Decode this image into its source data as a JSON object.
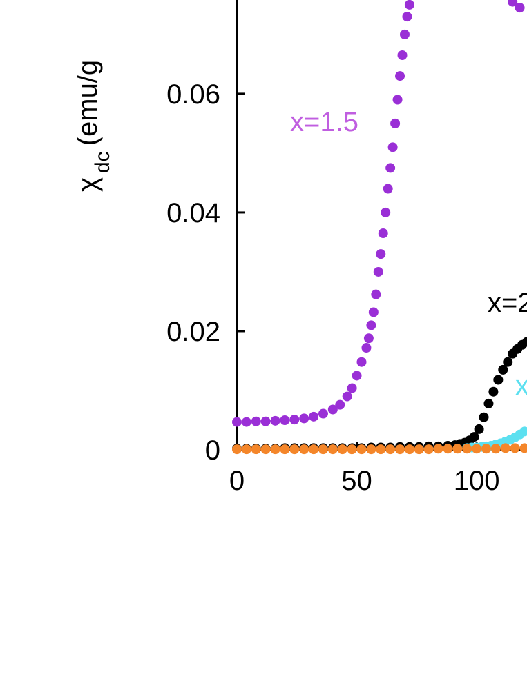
{
  "chart_data": {
    "type": "scatter",
    "y_label": "χ",
    "y_label_subscript": "dc",
    "y_label_unit": "(emu/g",
    "xlim": [
      0,
      121
    ],
    "ylim": [
      0,
      0.0758
    ],
    "xticks": [
      0,
      50,
      100
    ],
    "yticks": [
      0,
      0.02,
      0.04,
      0.06
    ],
    "series": [
      {
        "name": "x=1.5",
        "color": "#9a2fd6",
        "label_color": "#c05ee0",
        "x": [
          0,
          4,
          8,
          12,
          16,
          20,
          24,
          28,
          32,
          36,
          40,
          43,
          46,
          48,
          50,
          52,
          54,
          55,
          56,
          57,
          58,
          59,
          60,
          61,
          62,
          63,
          64,
          65,
          66,
          67,
          68,
          69,
          70,
          71,
          72,
          115,
          118
        ],
        "values": [
          0.0047,
          0.0047,
          0.0048,
          0.0048,
          0.0049,
          0.005,
          0.0051,
          0.0053,
          0.0056,
          0.0061,
          0.0068,
          0.0076,
          0.009,
          0.0104,
          0.0125,
          0.0148,
          0.0172,
          0.0188,
          0.021,
          0.0232,
          0.0262,
          0.03,
          0.033,
          0.0365,
          0.04,
          0.044,
          0.0475,
          0.051,
          0.055,
          0.059,
          0.063,
          0.0665,
          0.07,
          0.073,
          0.075,
          0.0755,
          0.0745
        ]
      },
      {
        "name": "x=2",
        "color": "#000000",
        "label_color": "#000000",
        "x": [
          0,
          4,
          8,
          12,
          16,
          20,
          24,
          28,
          32,
          36,
          40,
          44,
          48,
          52,
          56,
          60,
          64,
          68,
          72,
          76,
          80,
          84,
          88,
          91,
          93,
          95,
          97,
          99,
          101,
          103,
          105,
          107,
          109,
          111,
          113,
          115,
          117,
          119,
          121
        ],
        "values": [
          0.0002,
          0.0002,
          0.0002,
          0.0002,
          0.0002,
          0.0003,
          0.0003,
          0.0003,
          0.0003,
          0.0003,
          0.0003,
          0.0003,
          0.0003,
          0.0003,
          0.0004,
          0.0004,
          0.0004,
          0.0005,
          0.0005,
          0.0005,
          0.0006,
          0.0006,
          0.0007,
          0.0008,
          0.001,
          0.0012,
          0.0016,
          0.0022,
          0.0035,
          0.0055,
          0.0078,
          0.0098,
          0.0118,
          0.0135,
          0.0148,
          0.0162,
          0.017,
          0.0177,
          0.0182
        ]
      },
      {
        "name": "x",
        "color": "#5ce0f0",
        "label_color": "#5ce0f0",
        "x": [
          96,
          98,
          100,
          102,
          104,
          106,
          108,
          110,
          112,
          114,
          116,
          118,
          120
        ],
        "values": [
          0.0003,
          0.0004,
          0.0004,
          0.0005,
          0.0006,
          0.0007,
          0.0009,
          0.0011,
          0.0014,
          0.0017,
          0.0021,
          0.0026,
          0.0031
        ]
      },
      {
        "color": "#f4862a",
        "x": [
          0,
          4,
          8,
          12,
          16,
          20,
          24,
          28,
          32,
          36,
          40,
          44,
          48,
          52,
          56,
          60,
          64,
          68,
          72,
          76,
          80,
          84,
          88,
          92,
          96,
          100,
          104,
          108,
          112,
          116,
          120
        ],
        "values": [
          0.0001,
          0.0001,
          0.0001,
          0.0001,
          0.0001,
          0.0001,
          0.0001,
          0.0001,
          0.0001,
          0.0001,
          0.0001,
          0.0001,
          0.0001,
          0.0001,
          0.0001,
          0.0001,
          0.0001,
          0.0001,
          0.0001,
          0.0001,
          0.0001,
          0.0002,
          0.0002,
          0.0002,
          0.0002,
          0.0002,
          0.0002,
          0.0002,
          0.0003,
          0.0003,
          0.0003
        ]
      }
    ]
  }
}
